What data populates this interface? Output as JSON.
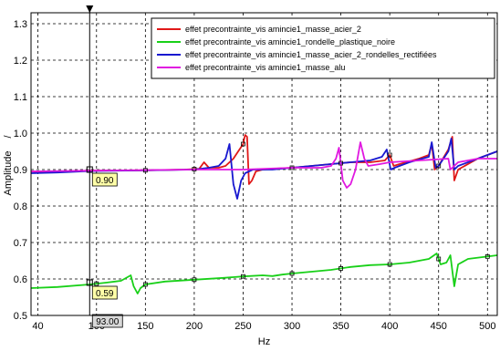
{
  "chart_data": {
    "type": "line",
    "xlabel": "Hz",
    "ylabel": "Amplitude",
    "ylabel_unit": "/",
    "xlim": [
      33,
      510
    ],
    "ylim": [
      0.5,
      1.33
    ],
    "xticks": [
      40,
      100,
      150,
      200,
      250,
      300,
      350,
      400,
      450,
      500
    ],
    "yticks": [
      0.5,
      0.6,
      0.7,
      0.8,
      0.9,
      1.0,
      1.1,
      1.2,
      1.3
    ],
    "grid": true,
    "legend_position": "top-right",
    "cursor": {
      "x": 93.0,
      "x_label": "93.00",
      "readouts": [
        {
          "y": 0.9,
          "label": "0.90"
        },
        {
          "y": 0.59,
          "label": "0.59"
        }
      ]
    },
    "series": [
      {
        "name": "effet precontrainte_vis amincie1_masse_acier_2",
        "color": "#e01818",
        "points": [
          [
            33,
            0.895
          ],
          [
            60,
            0.894
          ],
          [
            93,
            0.897
          ],
          [
            150,
            0.898
          ],
          [
            190,
            0.9
          ],
          [
            205,
            0.902
          ],
          [
            210,
            0.92
          ],
          [
            215,
            0.905
          ],
          [
            225,
            0.905
          ],
          [
            232,
            0.91
          ],
          [
            240,
            0.93
          ],
          [
            245,
            0.95
          ],
          [
            250,
            0.97
          ],
          [
            252,
            0.995
          ],
          [
            254,
            0.99
          ],
          [
            256,
            0.86
          ],
          [
            259,
            0.87
          ],
          [
            263,
            0.895
          ],
          [
            270,
            0.9
          ],
          [
            280,
            0.902
          ],
          [
            300,
            0.905
          ],
          [
            320,
            0.91
          ],
          [
            340,
            0.915
          ],
          [
            360,
            0.92
          ],
          [
            380,
            0.92
          ],
          [
            395,
            0.925
          ],
          [
            400,
            0.94
          ],
          [
            404,
            0.91
          ],
          [
            410,
            0.915
          ],
          [
            430,
            0.93
          ],
          [
            440,
            0.94
          ],
          [
            443,
            0.97
          ],
          [
            446,
            0.9
          ],
          [
            450,
            0.91
          ],
          [
            460,
            0.955
          ],
          [
            464,
            0.99
          ],
          [
            466,
            0.87
          ],
          [
            470,
            0.9
          ],
          [
            490,
            0.93
          ],
          [
            510,
            0.95
          ]
        ]
      },
      {
        "name": "effet precontrainte_vis amincie1_rondelle_plastique_noire",
        "color": "#18d018",
        "points": [
          [
            33,
            0.575
          ],
          [
            60,
            0.578
          ],
          [
            93,
            0.585
          ],
          [
            110,
            0.59
          ],
          [
            125,
            0.595
          ],
          [
            135,
            0.61
          ],
          [
            138,
            0.58
          ],
          [
            142,
            0.56
          ],
          [
            145,
            0.575
          ],
          [
            150,
            0.585
          ],
          [
            170,
            0.593
          ],
          [
            200,
            0.598
          ],
          [
            230,
            0.603
          ],
          [
            250,
            0.607
          ],
          [
            270,
            0.61
          ],
          [
            280,
            0.608
          ],
          [
            290,
            0.612
          ],
          [
            300,
            0.615
          ],
          [
            320,
            0.62
          ],
          [
            340,
            0.625
          ],
          [
            360,
            0.633
          ],
          [
            380,
            0.638
          ],
          [
            400,
            0.64
          ],
          [
            420,
            0.645
          ],
          [
            440,
            0.655
          ],
          [
            448,
            0.67
          ],
          [
            452,
            0.64
          ],
          [
            458,
            0.645
          ],
          [
            462,
            0.665
          ],
          [
            466,
            0.58
          ],
          [
            470,
            0.64
          ],
          [
            480,
            0.655
          ],
          [
            495,
            0.66
          ],
          [
            510,
            0.665
          ]
        ]
      },
      {
        "name": "effet precontrainte_vis amincie1_masse_acier_2_rondelles_rectifiées",
        "color": "#1818d0",
        "points": [
          [
            33,
            0.89
          ],
          [
            60,
            0.892
          ],
          [
            93,
            0.896
          ],
          [
            150,
            0.898
          ],
          [
            200,
            0.9
          ],
          [
            215,
            0.905
          ],
          [
            225,
            0.91
          ],
          [
            232,
            0.93
          ],
          [
            236,
            0.97
          ],
          [
            240,
            0.86
          ],
          [
            244,
            0.82
          ],
          [
            248,
            0.87
          ],
          [
            252,
            0.89
          ],
          [
            260,
            0.9
          ],
          [
            280,
            0.9
          ],
          [
            300,
            0.905
          ],
          [
            320,
            0.91
          ],
          [
            340,
            0.915
          ],
          [
            360,
            0.92
          ],
          [
            380,
            0.925
          ],
          [
            392,
            0.935
          ],
          [
            397,
            0.955
          ],
          [
            401,
            0.9
          ],
          [
            405,
            0.905
          ],
          [
            420,
            0.92
          ],
          [
            440,
            0.935
          ],
          [
            443,
            0.975
          ],
          [
            447,
            0.905
          ],
          [
            450,
            0.91
          ],
          [
            460,
            0.95
          ],
          [
            463,
            0.985
          ],
          [
            466,
            0.9
          ],
          [
            470,
            0.91
          ],
          [
            490,
            0.93
          ],
          [
            510,
            0.95
          ]
        ]
      },
      {
        "name": "effet precontrainte_vis amincie1_masse_alu",
        "color": "#e018e0",
        "points": [
          [
            33,
            0.895
          ],
          [
            93,
            0.897
          ],
          [
            200,
            0.9
          ],
          [
            250,
            0.9
          ],
          [
            300,
            0.905
          ],
          [
            330,
            0.905
          ],
          [
            340,
            0.91
          ],
          [
            345,
            0.93
          ],
          [
            348,
            0.96
          ],
          [
            352,
            0.87
          ],
          [
            356,
            0.85
          ],
          [
            360,
            0.86
          ],
          [
            365,
            0.9
          ],
          [
            370,
            0.975
          ],
          [
            374,
            0.93
          ],
          [
            378,
            0.91
          ],
          [
            390,
            0.915
          ],
          [
            400,
            0.92
          ],
          [
            430,
            0.925
          ],
          [
            460,
            0.93
          ],
          [
            462,
            0.9
          ],
          [
            470,
            0.92
          ],
          [
            490,
            0.93
          ],
          [
            510,
            0.93
          ]
        ]
      }
    ]
  }
}
